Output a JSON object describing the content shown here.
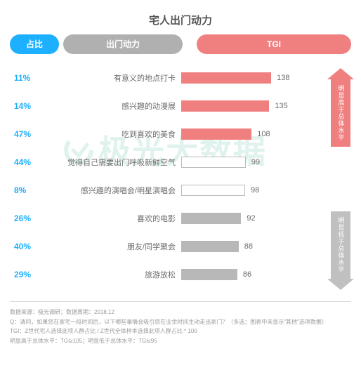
{
  "title": "宅人出门动力",
  "header": {
    "share": "占比",
    "motiv": "出门动力",
    "tgi": "TGI"
  },
  "watermark": "极光大数据",
  "tgi_max": 140,
  "rows": [
    {
      "share": "11%",
      "label": "有意义的地点打卡",
      "tgi": 138,
      "band": "high"
    },
    {
      "share": "14%",
      "label": "感兴趣的动漫展",
      "tgi": 135,
      "band": "high"
    },
    {
      "share": "47%",
      "label": "吃到喜欢的美食",
      "tgi": 108,
      "band": "high"
    },
    {
      "share": "44%",
      "label": "觉得自己需要出门呼吸新鲜空气",
      "tgi": 99,
      "band": "neutral"
    },
    {
      "share": "8%",
      "label": "感兴趣的演唱会/明星演唱会",
      "tgi": 98,
      "band": "neutral"
    },
    {
      "share": "26%",
      "label": "喜欢的电影",
      "tgi": 92,
      "band": "low"
    },
    {
      "share": "40%",
      "label": "朋友/同学聚会",
      "tgi": 88,
      "band": "low"
    },
    {
      "share": "29%",
      "label": "旅游放松",
      "tgi": 86,
      "band": "low"
    }
  ],
  "arrow_up_text": "明显高于总体水平",
  "arrow_down_text": "明显低于总体水平",
  "footer": {
    "l1": "数据来源：极光调研；数据周期：2018.12",
    "l2": "Q：请问，如果您在家宅一段时间后，以下哪些事情会吸引您在业余时间主动走出家门？（多选；图表中未显示\"其他\"选项数据）",
    "l3": "TGI：Z世代宅人选择此项人群占比 / Z世代全体样本选择此项人群占比 * 100",
    "l4": "明显高于总体水平：TGI≥105；明显低于总体水平：TGI≤95"
  },
  "colors": {
    "accent_blue": "#1db0ff",
    "accent_red": "#f08080",
    "accent_gray": "#b0b0b0",
    "bar_gray": "#b8b8b8",
    "text_gray": "#6b6b6b"
  }
}
